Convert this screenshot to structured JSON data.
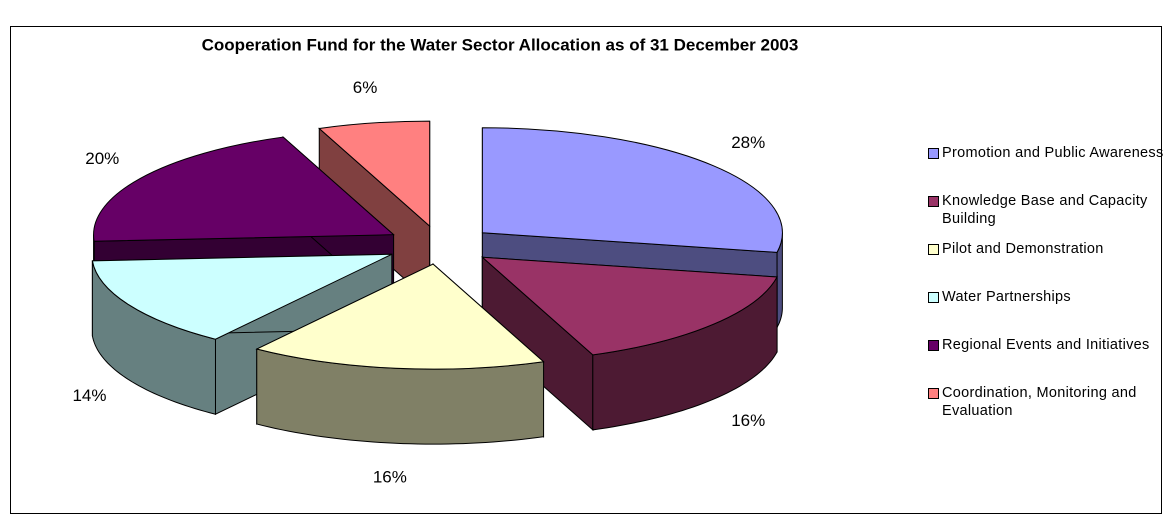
{
  "chart_data": {
    "type": "pie3d",
    "title": "Cooperation Fund for the Water Sector Allocation as of 31 December 2003",
    "categories": [
      "Promotion and Public Awareness",
      "Knowledge Base and Capacity Building",
      "Pilot and Demonstration",
      "Water Partnerships",
      "Regional Events and Initiatives",
      "Coordination, Monitoring and Evaluation"
    ],
    "values": [
      28,
      16,
      16,
      14,
      20,
      6
    ],
    "value_labels": [
      "28%",
      "16%",
      "16%",
      "14%",
      "20%",
      "6%"
    ],
    "colors": [
      "#9999ff",
      "#993366",
      "#ffffcc",
      "#ccffff",
      "#660066",
      "#ff8080"
    ],
    "legend": "right"
  }
}
